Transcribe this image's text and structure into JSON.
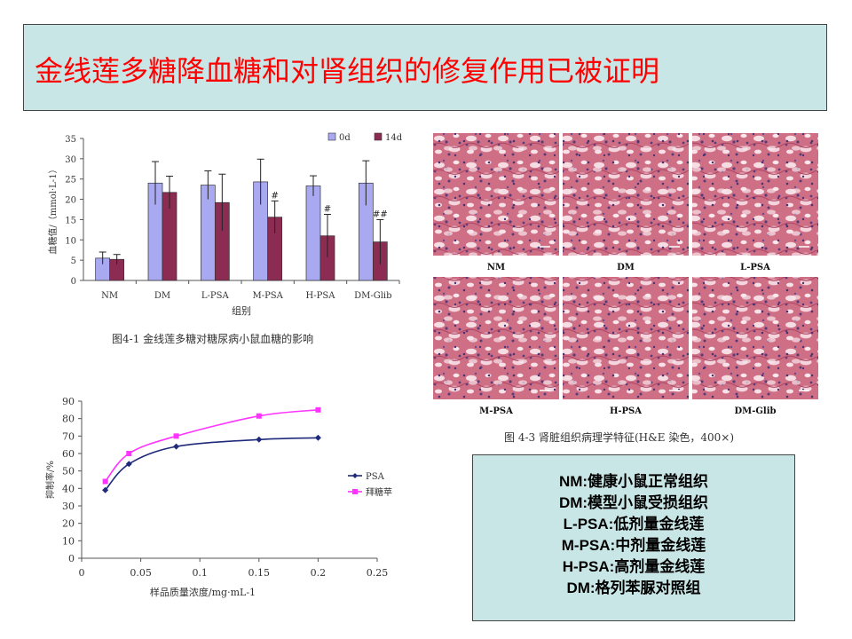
{
  "slide": {
    "title": "金线莲多糖降血糖和对肾组织的修复作用已被证明"
  },
  "colors": {
    "title_bg": "#c9e6e6",
    "title_text": "#ff0000",
    "bar_0d": "#a9a9f2",
    "bar_14d": "#8c2c52",
    "line_psa": "#1f2a7a",
    "line_ref": "#ff33ff"
  },
  "chart_data": [
    {
      "type": "bar",
      "categories": [
        "NM",
        "DM",
        "L-PSA",
        "M-PSA",
        "H-PSA",
        "DM-Glib"
      ],
      "series": [
        {
          "name": "0d",
          "values": [
            5.5,
            24,
            23.5,
            24.3,
            23.3,
            24
          ],
          "errors": [
            1.5,
            5.3,
            3.5,
            5.6,
            2.5,
            5.5
          ]
        },
        {
          "name": "14d",
          "values": [
            5.2,
            21.7,
            19.2,
            15.6,
            11,
            9.5
          ],
          "errors": [
            1.2,
            4.0,
            7.0,
            4.0,
            5.3,
            5.5
          ]
        }
      ],
      "annotations": [
        {
          "category": "M-PSA",
          "series": "14d",
          "text": "#"
        },
        {
          "category": "H-PSA",
          "series": "14d",
          "text": "#"
        },
        {
          "category": "DM-Glib",
          "series": "14d",
          "text": "##"
        }
      ],
      "ylim": [
        0,
        35
      ],
      "yticks": [
        0,
        5,
        10,
        15,
        20,
        25,
        30,
        35
      ],
      "ylabel": "血糖值/（mmol·L-1）",
      "xlabel": "组别",
      "legend": "top-right",
      "caption": "图4-1 金线莲多糖对糖尿病小鼠血糖的影响"
    },
    {
      "type": "line",
      "series": [
        {
          "name": "PSA",
          "x": [
            0.02,
            0.04,
            0.08,
            0.15,
            0.2
          ],
          "y": [
            39,
            54,
            64,
            68,
            69
          ]
        },
        {
          "name": "拜糖苹",
          "x": [
            0.02,
            0.04,
            0.08,
            0.15,
            0.2
          ],
          "y": [
            44,
            60,
            70,
            81.5,
            85
          ]
        }
      ],
      "xlim": [
        0,
        0.25
      ],
      "xticks": [
        "0",
        "0.05",
        "0.1",
        "0.15",
        "0.2",
        "0.25"
      ],
      "ylim": [
        0,
        90
      ],
      "yticks": [
        0,
        10,
        20,
        30,
        40,
        50,
        60,
        70,
        80,
        90
      ],
      "ylabel": "抑制率/%",
      "xlabel": "样品质量浓度/mg·mL-1",
      "legend": "right"
    }
  ],
  "histology": {
    "panels": [
      "NM",
      "DM",
      "L-PSA",
      "M-PSA",
      "H-PSA",
      "DM-Glib"
    ],
    "caption": "图 4-3 肾脏组织病理学特征(H&E  染色，400×)"
  },
  "legend_box": {
    "lines": [
      "NM:健康小鼠正常组织",
      "DM:模型小鼠受损组织",
      "L-PSA:低剂量金线莲",
      "M-PSA:中剂量金线莲",
      "H-PSA:高剂量金线莲",
      "DM:格列苯脲对照组"
    ]
  }
}
